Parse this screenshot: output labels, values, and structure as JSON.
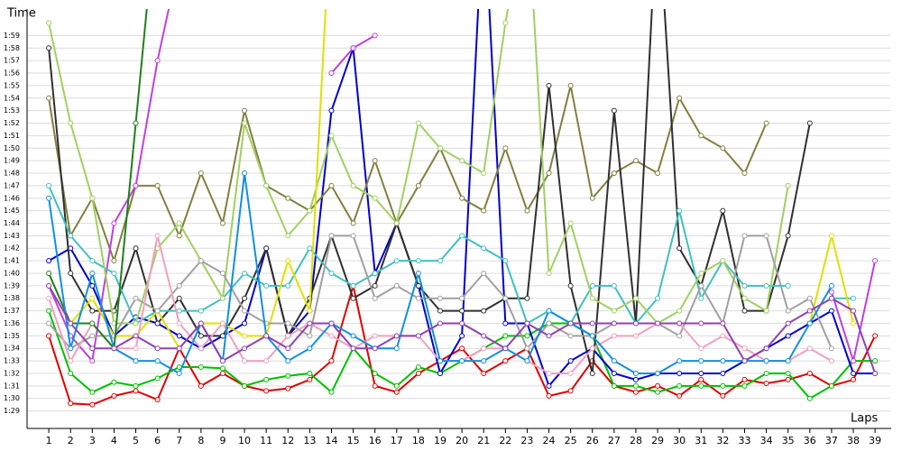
{
  "chart_data": {
    "type": "line",
    "y_label": "Time",
    "x_label": "Laps",
    "x": [
      1,
      2,
      3,
      4,
      5,
      6,
      7,
      8,
      9,
      10,
      11,
      12,
      13,
      14,
      15,
      16,
      17,
      18,
      19,
      20,
      21,
      22,
      23,
      24,
      25,
      26,
      27,
      28,
      29,
      30,
      31,
      32,
      33,
      34,
      35,
      36,
      37,
      38,
      39
    ],
    "xticks": [
      1,
      2,
      3,
      4,
      5,
      6,
      7,
      8,
      9,
      10,
      11,
      12,
      13,
      14,
      15,
      16,
      17,
      18,
      19,
      20,
      21,
      22,
      23,
      24,
      25,
      26,
      27,
      28,
      29,
      30,
      31,
      32,
      33,
      34,
      35,
      36,
      37,
      38,
      39
    ],
    "xlim": [
      0,
      39.7
    ],
    "ylim": [
      87.6,
      120.4
    ],
    "yticks": [
      {
        "value": 89,
        "label": "1:29"
      },
      {
        "value": 90,
        "label": "1:30"
      },
      {
        "value": 91,
        "label": "1:31"
      },
      {
        "value": 92,
        "label": "1:32"
      },
      {
        "value": 93,
        "label": "1:33"
      },
      {
        "value": 94,
        "label": "1:34"
      },
      {
        "value": 95,
        "label": "1:35"
      },
      {
        "value": 96,
        "label": "1:36"
      },
      {
        "value": 97,
        "label": "1:37"
      },
      {
        "value": 98,
        "label": "1:38"
      },
      {
        "value": 99,
        "label": "1:39"
      },
      {
        "value": 100,
        "label": "1:40"
      },
      {
        "value": 101,
        "label": "1:41"
      },
      {
        "value": 102,
        "label": "1:42"
      },
      {
        "value": 103,
        "label": "1:43"
      },
      {
        "value": 104,
        "label": "1:44"
      },
      {
        "value": 105,
        "label": "1:45"
      },
      {
        "value": 106,
        "label": "1:46"
      },
      {
        "value": 107,
        "label": "1:47"
      },
      {
        "value": 108,
        "label": "1:48"
      },
      {
        "value": 109,
        "label": "1:49"
      },
      {
        "value": 110,
        "label": "1:50"
      },
      {
        "value": 111,
        "label": "1:51"
      },
      {
        "value": 112,
        "label": "1:52"
      },
      {
        "value": 113,
        "label": "1:53"
      },
      {
        "value": 114,
        "label": "1:54"
      },
      {
        "value": 115,
        "label": "1:55"
      },
      {
        "value": 116,
        "label": "1:56"
      },
      {
        "value": 117,
        "label": "1:57"
      },
      {
        "value": 118,
        "label": "1:58"
      },
      {
        "value": 119,
        "label": "1:59"
      }
    ],
    "grid": true,
    "series": [
      {
        "color": "#e00000",
        "values": [
          95,
          89.6,
          89.5,
          90.2,
          90.6,
          89.9,
          94,
          91,
          92,
          91,
          90.6,
          90.8,
          91.5,
          93,
          99,
          91,
          90.5,
          92,
          93,
          94,
          92,
          93,
          94,
          90.2,
          90.6,
          93,
          91,
          90.5,
          91,
          90.2,
          91.5,
          90.2,
          91.5,
          91.2,
          91.5,
          92,
          91,
          91.5,
          95
        ]
      },
      {
        "color": "#00c000",
        "values": [
          97,
          92,
          90.5,
          91.3,
          91,
          91.6,
          92.5,
          92.5,
          92.4,
          91,
          91.5,
          91.8,
          92,
          90.5,
          94,
          92,
          91,
          92.5,
          92,
          93,
          94,
          95,
          95,
          96,
          96,
          95,
          91,
          91,
          90.5,
          91,
          91,
          91,
          91,
          92,
          92,
          90,
          91,
          93,
          93
        ]
      },
      {
        "color": "#0000d0",
        "values": [
          101,
          102,
          99,
          95,
          96.5,
          96,
          95,
          94,
          95,
          96,
          102,
          95,
          97,
          113,
          118,
          100,
          104,
          99,
          92,
          95,
          130,
          96,
          96,
          91,
          93,
          94,
          92,
          91.5,
          92,
          92,
          92,
          92,
          93,
          94,
          95,
          96,
          97,
          92,
          92
        ]
      },
      {
        "color": "#808040",
        "values": [
          114,
          103,
          106,
          101,
          107,
          107,
          103,
          108,
          104,
          113,
          107,
          106,
          105,
          107,
          104,
          109,
          104,
          107,
          110,
          106,
          105,
          110,
          105,
          108,
          115,
          106,
          108,
          109,
          108,
          114,
          111,
          110,
          108,
          112,
          null,
          null,
          null,
          null,
          null
        ]
      },
      {
        "color": "#303030",
        "values": [
          118,
          100,
          97,
          97,
          102,
          96,
          98,
          95,
          95,
          98,
          102,
          95,
          98,
          103,
          98,
          99,
          104,
          99,
          97,
          97,
          97,
          98,
          98,
          115,
          99,
          92,
          113,
          96,
          130,
          102,
          99,
          105,
          97,
          97,
          103,
          112,
          null,
          null,
          null
        ]
      },
      {
        "color": "#c040e0",
        "values": [
          99,
          95,
          93,
          104,
          107,
          117,
          125,
          null,
          null,
          null,
          null,
          null,
          null,
          116,
          118,
          119,
          null,
          null,
          null,
          null,
          null,
          null,
          null,
          null,
          null,
          null,
          null,
          null,
          null,
          null,
          null,
          null,
          null,
          null,
          null,
          null,
          98.5,
          93,
          101
        ]
      },
      {
        "color": "#40c0c0",
        "values": [
          107,
          103,
          101,
          100,
          96,
          97,
          97,
          97,
          98,
          100,
          99,
          99,
          102,
          100,
          99,
          100,
          101,
          101,
          101,
          103,
          102,
          101,
          96,
          97,
          96,
          99,
          99,
          96,
          98,
          105,
          98,
          101,
          99,
          99,
          99,
          null,
          98,
          98,
          null
        ]
      },
      {
        "color": "#a0d060",
        "values": [
          120,
          112,
          106,
          96,
          96,
          102,
          104,
          101,
          98,
          112,
          107,
          103,
          105,
          111,
          107,
          106,
          104,
          112,
          110,
          109,
          108,
          120,
          130,
          100,
          104,
          98,
          97,
          98,
          96,
          97,
          100,
          101,
          98,
          97,
          107,
          null,
          null,
          null,
          null
        ]
      },
      {
        "color": "#e0e000",
        "values": [
          100,
          96,
          98,
          95,
          95,
          97,
          94,
          96,
          96,
          95,
          95,
          101,
          97,
          130,
          null,
          null,
          null,
          null,
          null,
          null,
          null,
          null,
          null,
          null,
          null,
          null,
          null,
          null,
          null,
          null,
          null,
          null,
          null,
          null,
          null,
          96,
          103,
          96,
          null
        ]
      },
      {
        "color": "#a0a0a0",
        "values": [
          96,
          94,
          95,
          95,
          98,
          97,
          99,
          101,
          100,
          97,
          96,
          96,
          95,
          103,
          103,
          98,
          99,
          98,
          98,
          98,
          100,
          98,
          94,
          96,
          95,
          95,
          96,
          96,
          96,
          95,
          99,
          96,
          103,
          103,
          97,
          98,
          94,
          null,
          null
        ]
      },
      {
        "color": "#f0a0c0",
        "values": [
          98,
          93,
          96,
          94,
          94,
          103,
          96,
          94,
          96,
          93,
          93,
          95,
          96,
          95,
          94,
          95,
          95,
          95,
          93,
          93,
          94,
          94,
          93,
          92,
          92,
          94,
          95,
          95,
          96,
          96,
          94,
          95,
          94,
          93,
          93,
          94,
          93,
          null,
          null
        ]
      },
      {
        "color": "#208020",
        "values": [
          100,
          96,
          96,
          94,
          112,
          130,
          null,
          null,
          null,
          null,
          null,
          null,
          null,
          null,
          null,
          null,
          null,
          null,
          null,
          null,
          null,
          null,
          null,
          null,
          null,
          null,
          null,
          null,
          null,
          null,
          null,
          null,
          null,
          null,
          null,
          null,
          null,
          null,
          null
        ]
      },
      {
        "color": "#1090e0",
        "values": [
          106,
          94,
          100,
          94,
          93,
          93,
          92,
          96,
          93,
          108,
          95,
          93,
          94,
          96,
          95,
          94,
          94,
          100,
          93,
          93,
          93,
          94,
          93,
          97,
          96,
          95,
          93,
          92,
          92,
          93,
          93,
          93,
          93,
          93,
          93,
          96,
          99,
          null,
          null
        ]
      },
      {
        "color": "#9040b0",
        "values": [
          99,
          96,
          94,
          94,
          95,
          94,
          94,
          96,
          93,
          94,
          95,
          94,
          96,
          96,
          94,
          94,
          95,
          95,
          96,
          96,
          95,
          94,
          96,
          95,
          96,
          96,
          96,
          96,
          96,
          96,
          96,
          96,
          93,
          94,
          96,
          97,
          98,
          97,
          92
        ]
      }
    ]
  }
}
